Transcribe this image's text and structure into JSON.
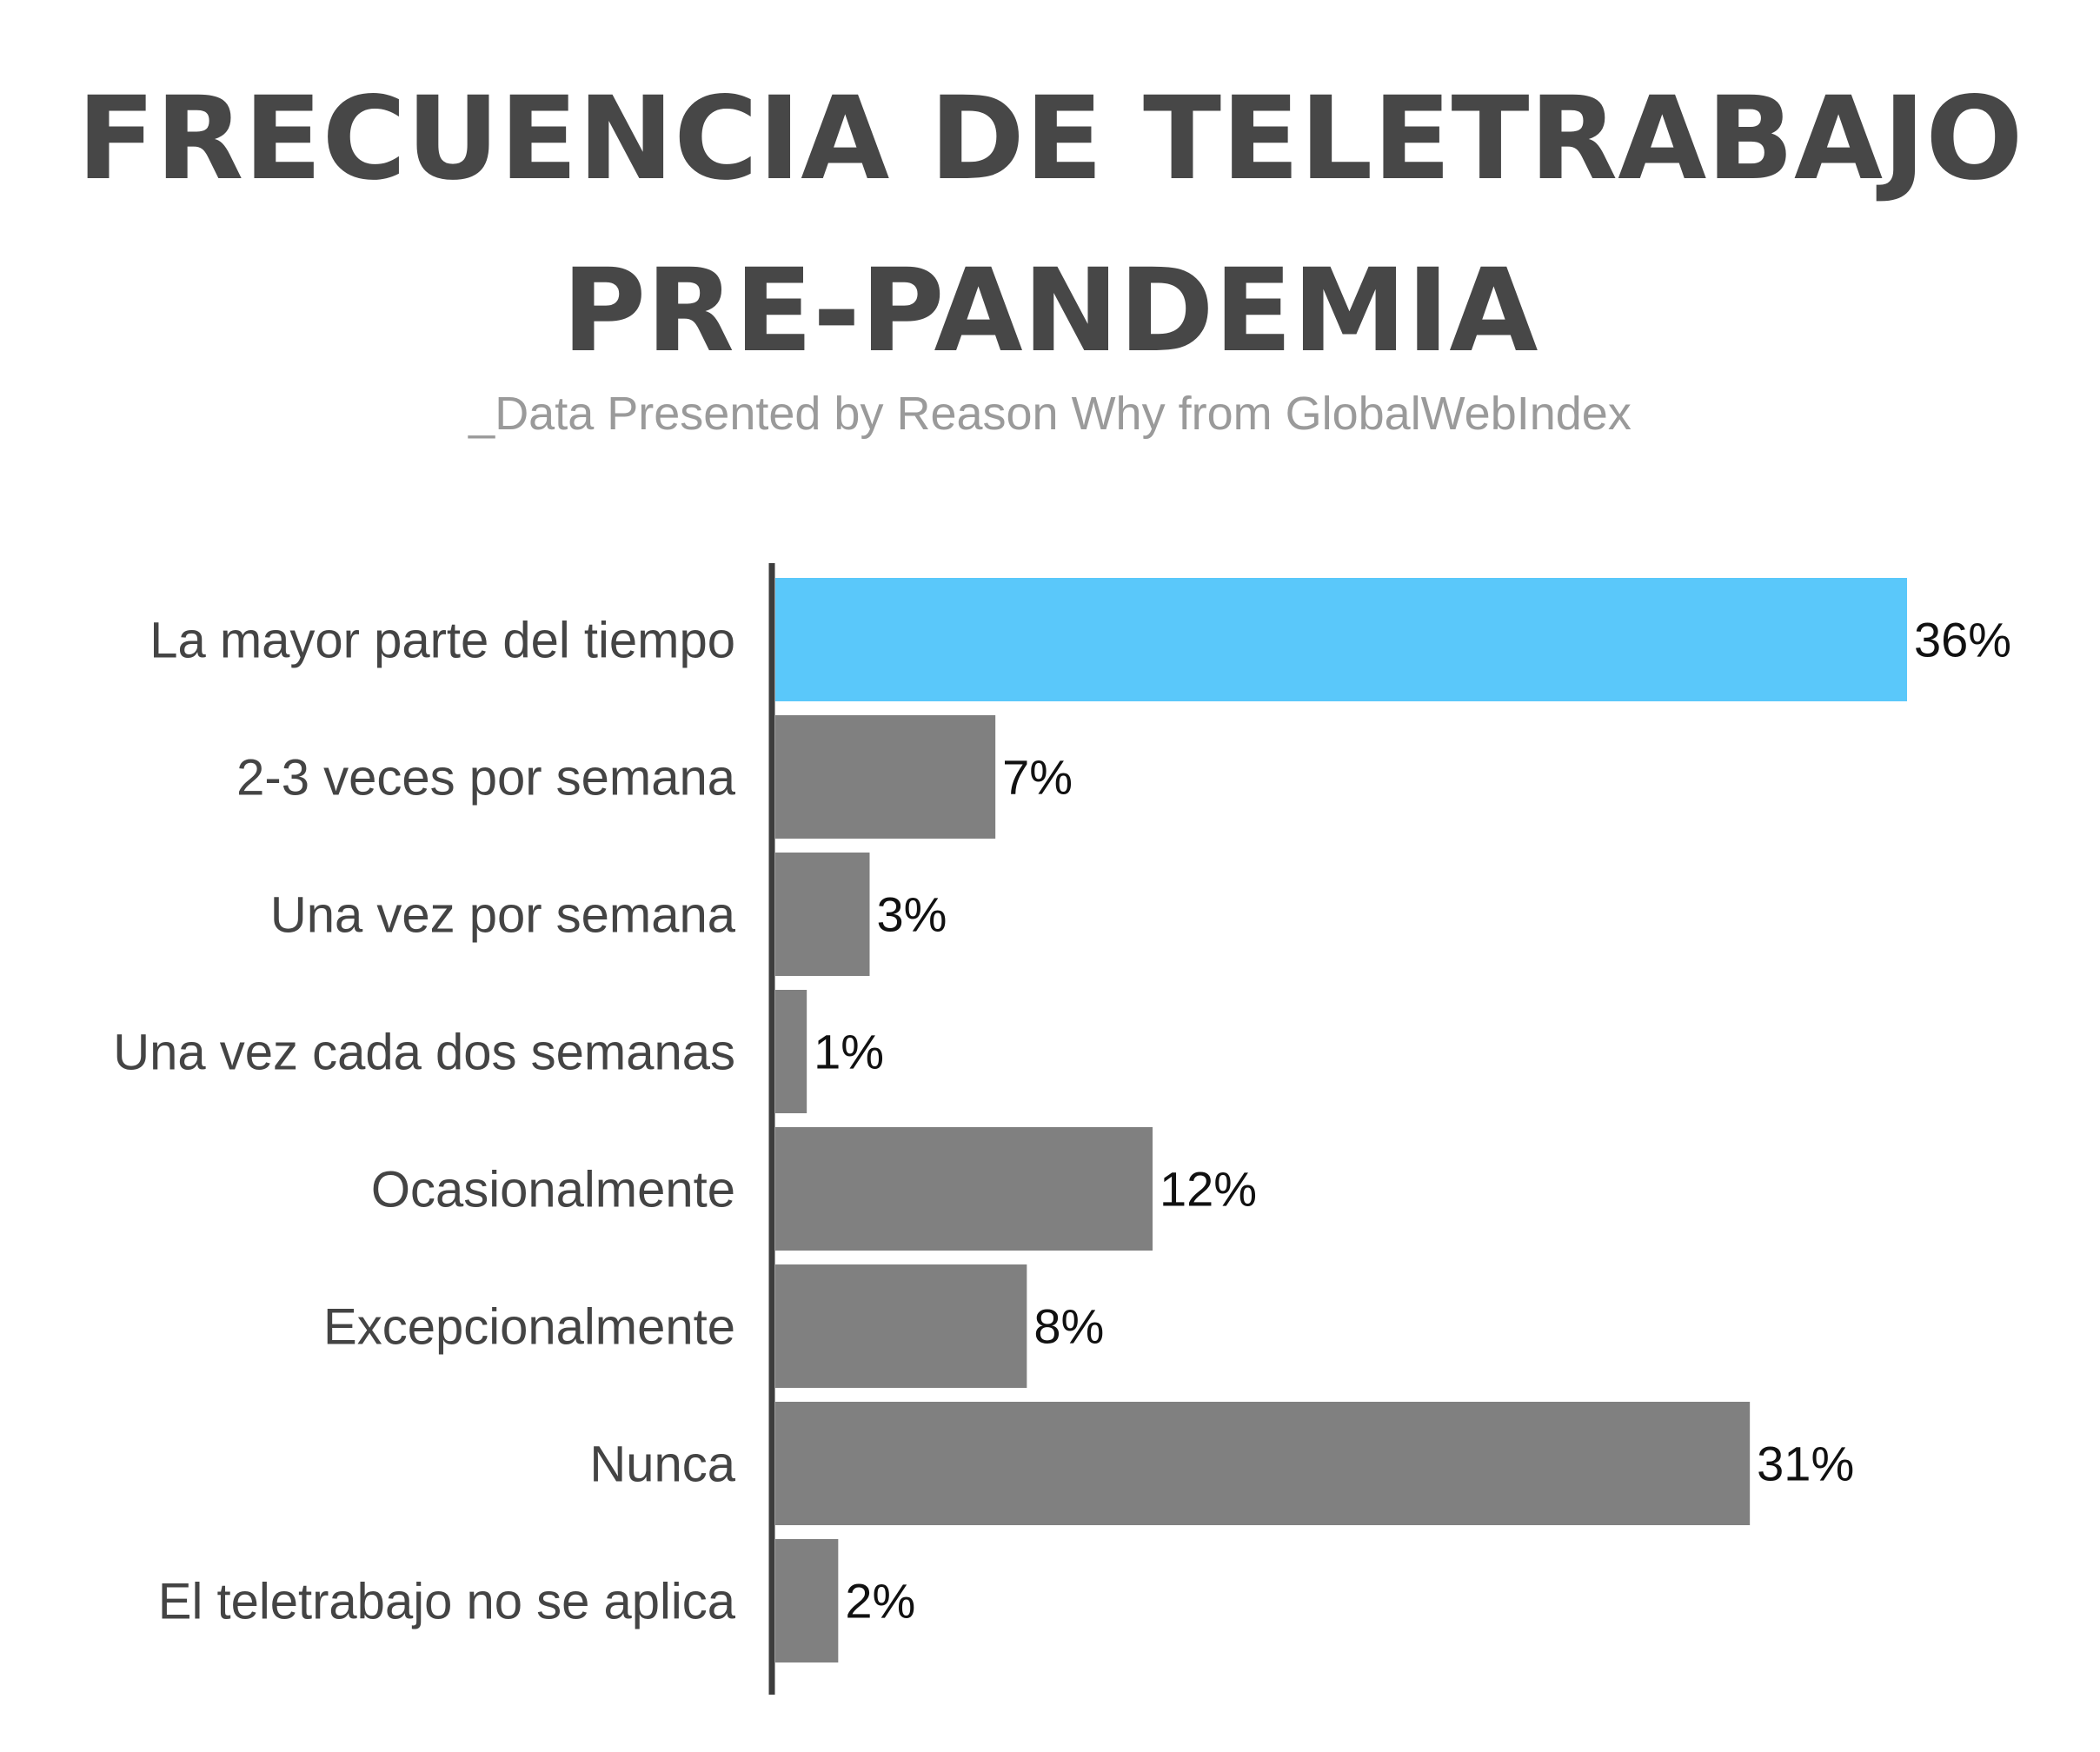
{
  "chart_data": {
    "type": "bar",
    "orientation": "horizontal",
    "title_lines": [
      "FRECUENCIA DE TELETRABAJO",
      "PRE-PANDEMIA"
    ],
    "subtitle": "_Data Presented by Reason Why from GlobalWebIndex",
    "categories": [
      "La mayor parte del tiempo",
      "2-3 veces por semana",
      "Una vez por semana",
      "Una vez cada dos semanas",
      "Ocasionalmente",
      "Excepcionalmente",
      "Nunca",
      "El teletrabajo no se aplica"
    ],
    "values": [
      36,
      7,
      3,
      1,
      12,
      8,
      31,
      2
    ],
    "value_labels": [
      "36%",
      "7%",
      "3%",
      "1%",
      "12%",
      "8%",
      "31%",
      "2%"
    ],
    "unit": "%",
    "highlight_index": 0,
    "xlim": [
      0,
      36
    ],
    "grid": false,
    "legend": "none",
    "xlabel": "",
    "ylabel": ""
  },
  "colors": {
    "highlight": "#5ac8fa",
    "bar": "#808080",
    "axis": "#3d3d3d",
    "title": "#474747",
    "subtitle": "#9a9a9a",
    "category_text": "#444444",
    "value_text": "#111111"
  }
}
